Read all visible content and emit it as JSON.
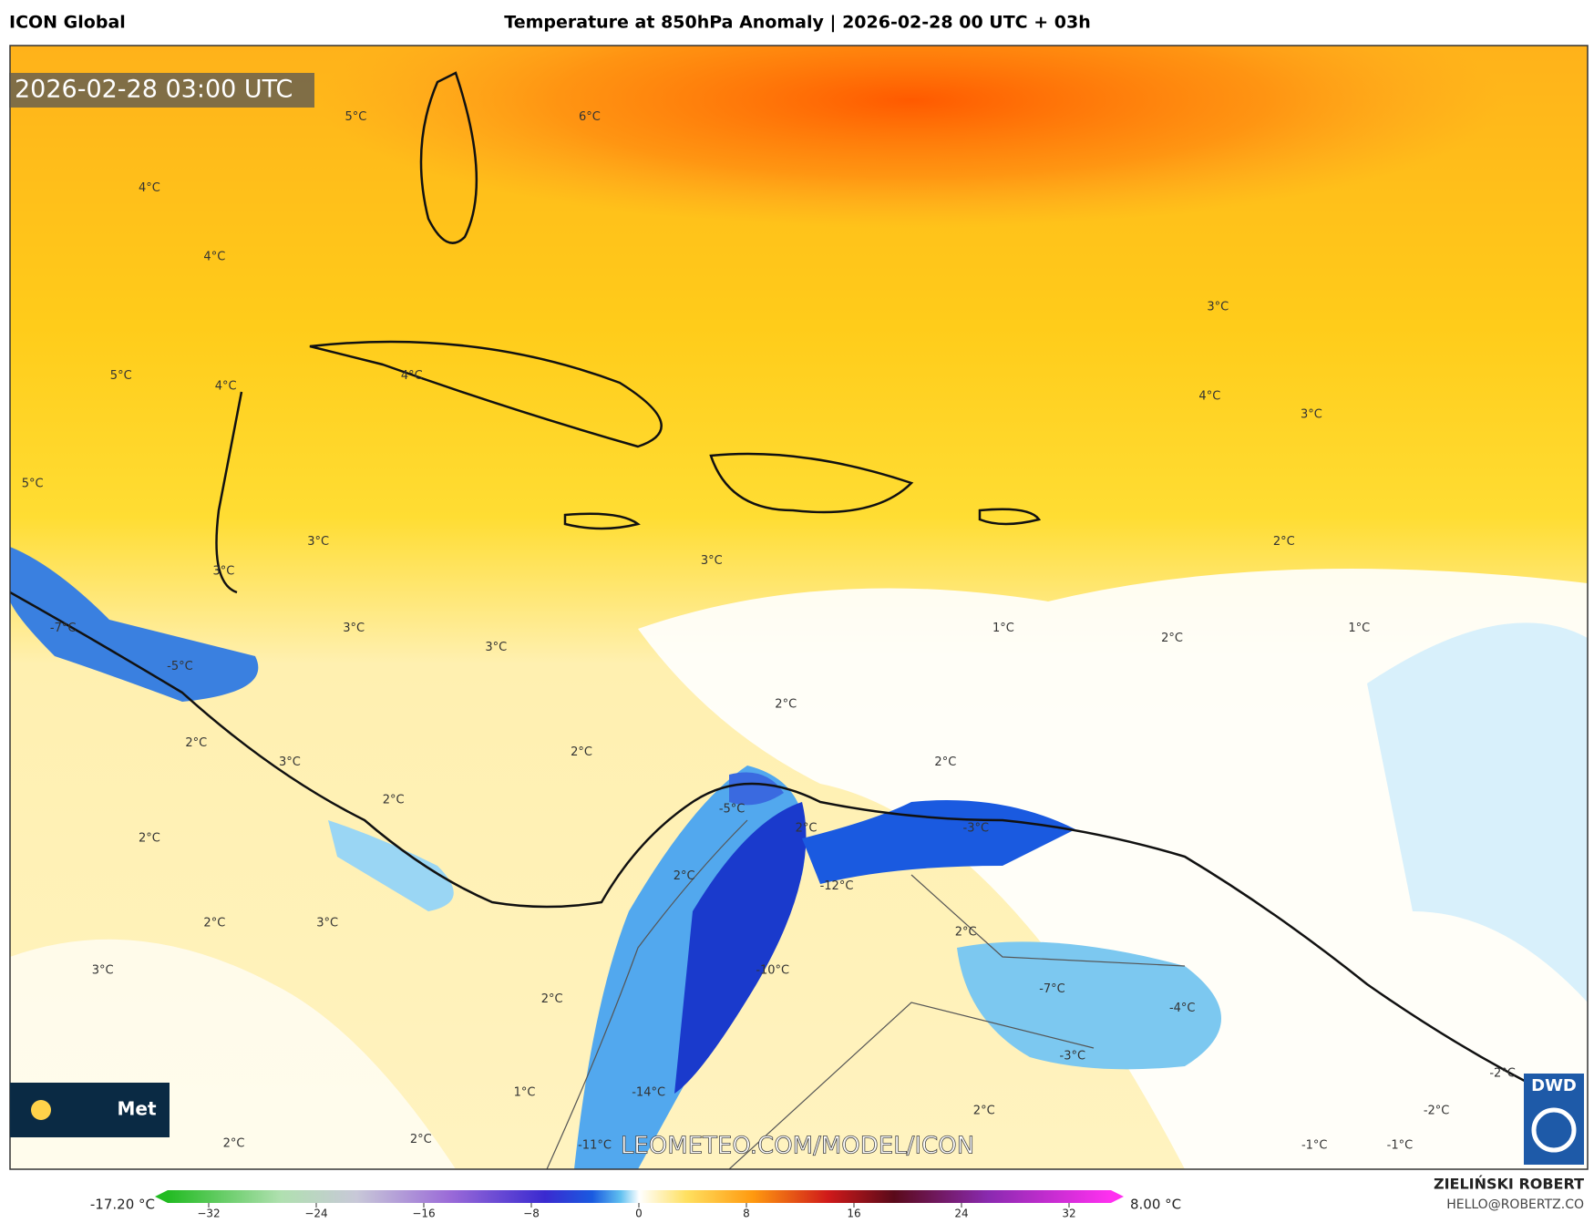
{
  "header": {
    "model": "ICON Global",
    "title": "Temperature at 850hPa Anomaly | 2026-02-28 00 UTC + 03h"
  },
  "map": {
    "timestamp": "2026-02-28 03:00 UTC",
    "watermark": "LEOMETEO.COM/MODEL/ICON",
    "logo_left": "Met",
    "logo_right": "DWD",
    "labels": [
      "5°C",
      "6°C",
      "4°C",
      "4°C",
      "3°C",
      "5°C",
      "4°C",
      "4°C",
      "4°C",
      "3°C",
      "5°C",
      "3°C",
      "3°C",
      "3°C",
      "2°C",
      "-7°C",
      "-5°C",
      "3°C",
      "3°C",
      "1°C",
      "2°C",
      "1°C",
      "2°C",
      "2°C",
      "3°C",
      "2°C",
      "2°C",
      "2°C",
      "-5°C",
      "2°C",
      "-3°C",
      "2°C",
      "2°C",
      "-12°C",
      "2°C",
      "3°C",
      "2°C",
      "3°C",
      "-10°C",
      "-7°C",
      "-4°C",
      "2°C",
      "-3°C",
      "-2°C",
      "1°C",
      "-14°C",
      "2°C",
      "-2°C",
      "2°C",
      "2°C",
      "-11°C",
      "-1°C",
      "-1°C"
    ]
  },
  "colorbar": {
    "min_label": "-17.20 °C",
    "max_label": "8.00 °C",
    "ticks": [
      "−32",
      "−24",
      "−16",
      "−8",
      "0",
      "8",
      "16",
      "24",
      "32"
    ]
  },
  "footer": {
    "author": "ZIELIŃSKI ROBERT",
    "email": "HELLO@ROBERTZ.CO"
  }
}
